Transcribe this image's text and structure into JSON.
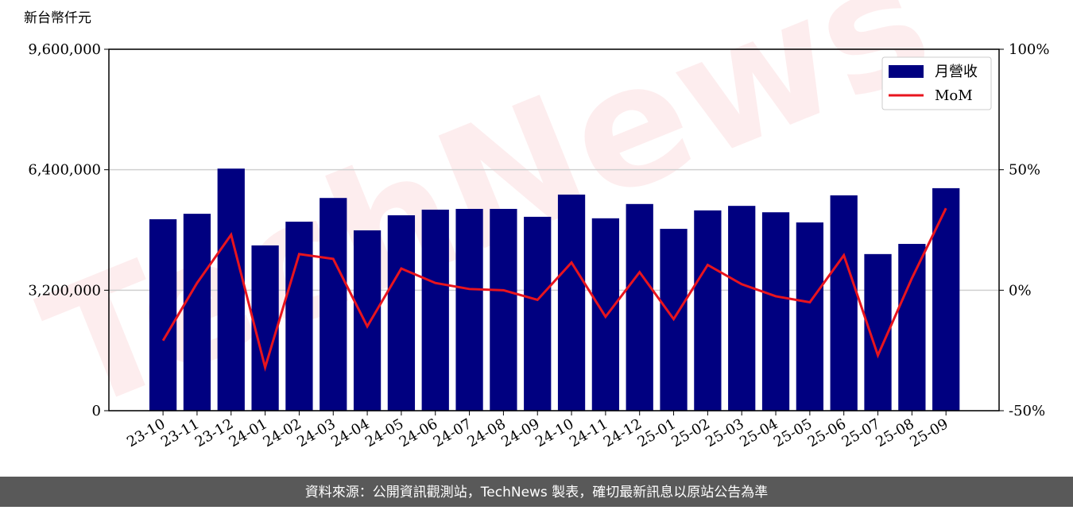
{
  "chart_data": {
    "type": "bar_line",
    "y_label": "新台幣仟元",
    "watermark": "TechNews",
    "source": "資料來源：公開資訊觀測站，TechNews 製表，確切最新訊息以原站公告為準",
    "categories": [
      "23-10",
      "23-11",
      "23-12",
      "24-01",
      "24-02",
      "24-03",
      "24-04",
      "24-05",
      "24-06",
      "24-07",
      "24-08",
      "24-09",
      "24-10",
      "24-11",
      "24-12",
      "25-01",
      "25-02",
      "25-03",
      "25-04",
      "25-05",
      "25-06",
      "25-07",
      "25-08",
      "25-09"
    ],
    "series": [
      {
        "name": "月營收",
        "type": "bar",
        "color": "#000080",
        "values": [
          5085000,
          5230000,
          6430000,
          4390000,
          5020000,
          5650000,
          4790000,
          5190000,
          5340000,
          5360000,
          5360000,
          5150000,
          5740000,
          5110000,
          5490000,
          4830000,
          5320000,
          5440000,
          5270000,
          5000000,
          5720000,
          4160000,
          4430000,
          5910000
        ]
      },
      {
        "name": "MoM",
        "type": "line",
        "axis": "y2",
        "color": "#e8141e",
        "values": [
          -20.9,
          3,
          23,
          -32,
          15,
          13,
          -15,
          9,
          3,
          0.5,
          0,
          -4,
          11.5,
          -11,
          7.5,
          -12,
          10.5,
          2.5,
          -2.5,
          -5,
          14.5,
          -27,
          5,
          34
        ]
      }
    ],
    "ylim": [
      0,
      9600000
    ],
    "yticks": [
      0,
      {
        "value": 3200000,
        "label": "3,200,000"
      },
      {
        "value": 6400000,
        "label": "6,400,000"
      },
      {
        "value": 9600000,
        "label": "9,600,000"
      }
    ],
    "y2lim": [
      -50,
      100
    ],
    "y2ticks": [
      {
        "value": -50,
        "label": "-50%"
      },
      {
        "value": 0,
        "label": "0%"
      },
      {
        "value": 50,
        "label": "50%"
      },
      {
        "value": 100,
        "label": "100%"
      }
    ],
    "grid": true,
    "legend": "upper right"
  }
}
